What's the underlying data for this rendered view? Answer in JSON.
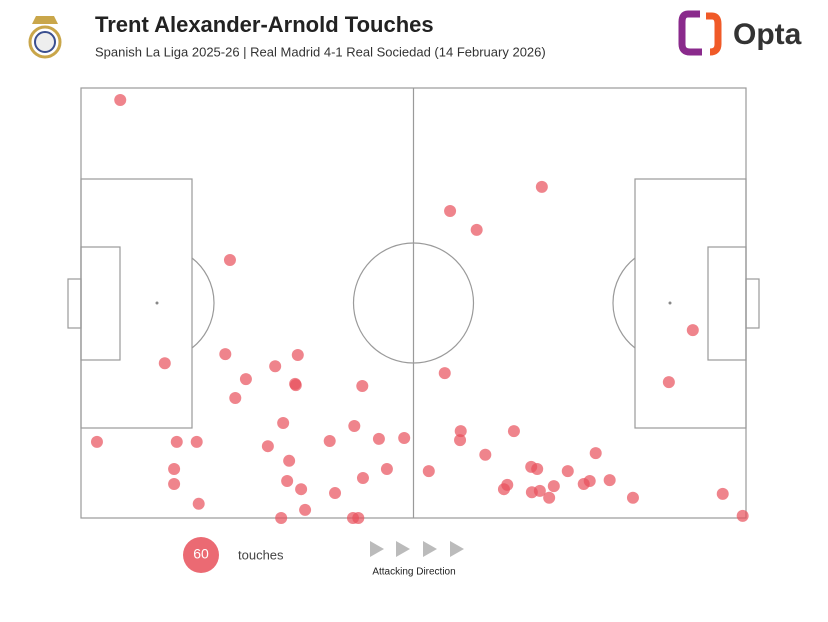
{
  "header": {
    "title": "Trent Alexander-Arnold Touches",
    "subtitle": "Spanish La Liga 2025-26 | Real Madrid 4-1 Real Sociedad (14 February 2026)",
    "brand": "Opta"
  },
  "chart_data": {
    "type": "scatter",
    "color": "#e8505b",
    "xlim": [
      0,
      100
    ],
    "ylim": [
      0,
      100
    ],
    "x": [
      5.9,
      22.4,
      12.6,
      21.7,
      24.8,
      29.2,
      32.6,
      32.3,
      23.2,
      42.3,
      2.4,
      14.4,
      17.4,
      14.0,
      14.0,
      17.7,
      30.4,
      28.1,
      31.3,
      31.0,
      33.1,
      33.7,
      30.1,
      37.4,
      41.1,
      44.8,
      48.6,
      46.0,
      42.4,
      38.2,
      40.9,
      41.7,
      55.5,
      59.5,
      69.3,
      54.7,
      57.1,
      57.0,
      52.3,
      60.8,
      65.1,
      67.7,
      68.6,
      73.2,
      77.4,
      64.1,
      63.6,
      67.8,
      69.0,
      71.1,
      70.4,
      75.6,
      76.5,
      79.5,
      83.0,
      96.5,
      99.5,
      92.0,
      88.4,
      32.2
    ],
    "y": [
      97.2,
      60.0,
      36.0,
      38.1,
      32.3,
      35.3,
      37.9,
      30.9,
      27.9,
      30.7,
      17.7,
      17.7,
      17.7,
      11.4,
      7.9,
      3.3,
      22.1,
      16.7,
      13.3,
      8.6,
      6.7,
      1.9,
      0,
      17.9,
      21.4,
      18.4,
      18.6,
      11.4,
      9.3,
      5.8,
      0,
      0,
      71.4,
      67.0,
      77.0,
      33.7,
      20.2,
      18.1,
      10.9,
      14.7,
      20.2,
      11.9,
      11.4,
      10.9,
      15.1,
      7.7,
      6.7,
      6.0,
      6.3,
      7.4,
      4.7,
      7.9,
      8.6,
      8.8,
      4.7,
      5.6,
      0.5,
      43.7,
      31.6,
      31.2
    ],
    "legend": {
      "count": 60,
      "label": "touches"
    },
    "direction_label": "Attacking Direction"
  }
}
